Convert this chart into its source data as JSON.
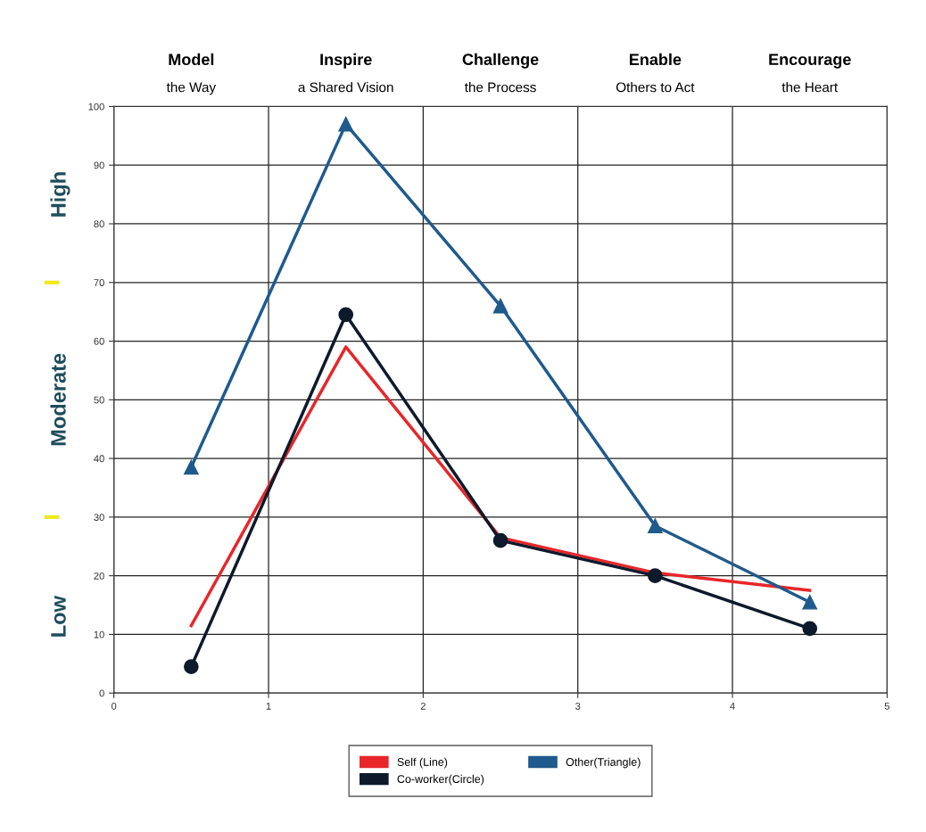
{
  "chart_data": {
    "type": "line",
    "x": [
      0.5,
      1.5,
      2.5,
      3.5,
      4.5
    ],
    "annotations": [
      "Model\nthe Way",
      "Inspire\na Shared Vision",
      "Challenge\nthe Process",
      "Enable\nOthers to Act",
      "Encourage\nthe Heart",
      "High",
      "Moderate",
      "Low"
    ],
    "xlim": [
      0,
      5
    ],
    "xticks": [
      0,
      1,
      2,
      3,
      4,
      5
    ],
    "ylim": [
      0,
      100
    ],
    "yticks": [
      0,
      10,
      20,
      30,
      40,
      50,
      60,
      70,
      80,
      90,
      100
    ],
    "grid": true,
    "legend": "bottom",
    "series": [
      {
        "name": "Self (Line)",
        "color": "#e8262a",
        "marker": "none",
        "values": [
          11.5,
          59,
          26.5,
          20.5,
          17.5
        ]
      },
      {
        "name": "Co-worker(Circle)",
        "color": "#0d1a2b",
        "marker": "circle",
        "values": [
          4.5,
          64.5,
          26,
          20,
          11
        ]
      },
      {
        "name": "Other(Triangle)",
        "color": "#1f5a8c",
        "marker": "triangle",
        "values": [
          38.5,
          97,
          66,
          28.5,
          15.5
        ]
      }
    ]
  }
}
